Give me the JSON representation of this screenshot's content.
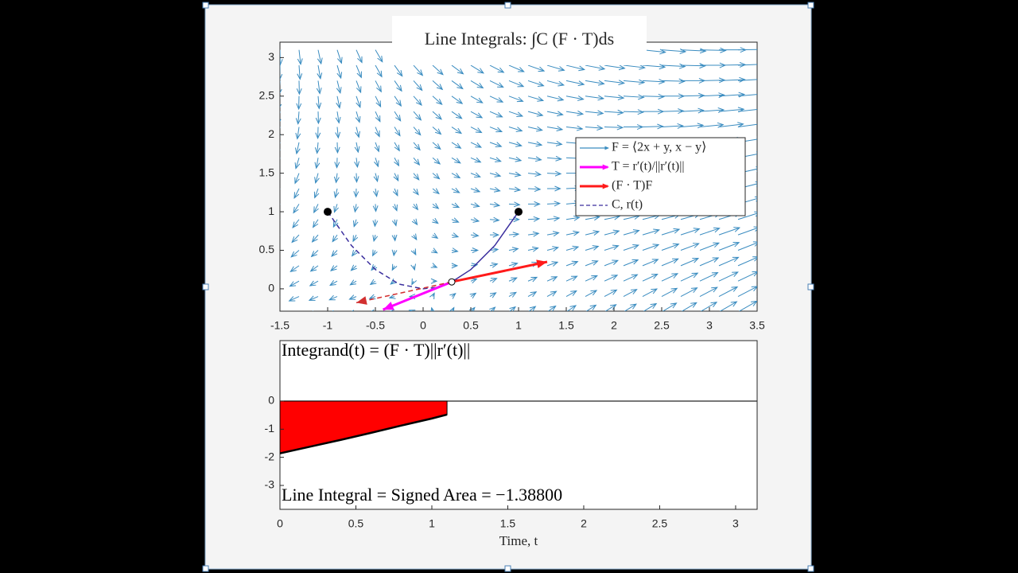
{
  "chart_data": [
    {
      "type": "quiver",
      "title": "Line Integrals: ∫C (F · T)ds",
      "xlim": [
        -1.5,
        3.5
      ],
      "ylim": [
        -0.29,
        3.2
      ],
      "xticks": [
        -1.5,
        -1,
        -0.5,
        0,
        0.5,
        1,
        1.5,
        2,
        2.5,
        3,
        3.5
      ],
      "yticks": [
        0,
        0.5,
        1,
        1.5,
        2,
        2.5,
        3
      ],
      "field": {
        "name": "F = ⟨2x + y, x − y⟩",
        "color": "#3a8cc0"
      },
      "arrows": [
        {
          "name": "T = r′(t)/||r′(t)||",
          "color": "#ff00ff",
          "x": [
            0.3,
            -0.42
          ],
          "y": [
            0.09,
            -0.27
          ]
        },
        {
          "name": "(F · T)F",
          "color": "#ff1a1a",
          "x": [
            0.3,
            1.3
          ],
          "y": [
            0.09,
            0.35
          ]
        },
        {
          "color": "#d23030",
          "style": "dashed",
          "x": [
            0.3,
            -0.7
          ],
          "y": [
            0.09,
            -0.18
          ]
        }
      ],
      "series": [
        {
          "name": "C,   r(t)",
          "color": "#3b2f9e",
          "style": "dashed",
          "x": [
            -1,
            -0.75,
            -0.5,
            -0.25,
            0,
            0.15,
            0.3
          ],
          "y": [
            1,
            0.56,
            0.25,
            0.06,
            0,
            0.02,
            0.09
          ]
        },
        {
          "color": "#3b2f9e",
          "style": "solid",
          "x": [
            0.3,
            0.5,
            0.75,
            1
          ],
          "y": [
            0.09,
            0.25,
            0.56,
            1
          ]
        }
      ],
      "points": {
        "x": [
          -1,
          1
        ],
        "y": [
          1,
          1
        ]
      },
      "current": {
        "x": 0.3,
        "y": 0.09
      },
      "legend": "upper right"
    },
    {
      "type": "area",
      "x": [
        0,
        0.2,
        0.4,
        0.6,
        0.8,
        1.0,
        1.1
      ],
      "values": [
        -1.86,
        -1.62,
        -1.38,
        -1.13,
        -0.87,
        -0.62,
        -0.48
      ],
      "color": "#ff0000",
      "xlim": [
        0,
        3.1416
      ],
      "ylim": [
        -3.85,
        2.15
      ],
      "xticks": [
        0,
        0.5,
        1,
        1.5,
        2,
        2.5,
        3
      ],
      "yticks": [
        -3,
        -2,
        -1,
        0
      ],
      "xlabel": "Time, t",
      "annotations": [
        "Integrand(t) = (F · T)||r′(t)||",
        "Line Integral = Signed Area = −1.38800"
      ]
    }
  ]
}
